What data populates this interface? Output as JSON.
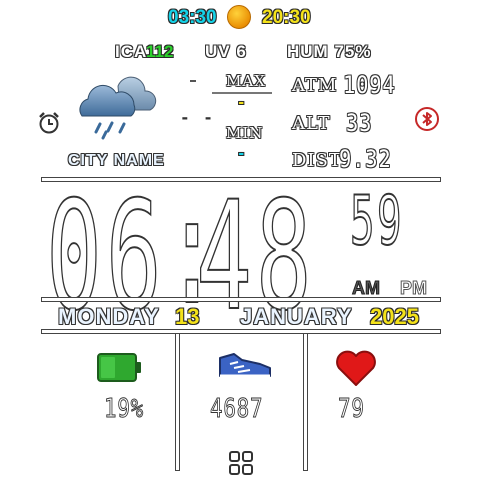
{
  "top": {
    "sunrise": "03:30",
    "sunset": "20:30"
  },
  "row2": {
    "ica_label": "ICA",
    "ica_value": "112",
    "uv": "UV 6",
    "hum": "HUM 75%"
  },
  "weather": {
    "max_label": "MAX",
    "min_label": "MIN",
    "temp_current": "- -",
    "max_value": "-",
    "min_value": "-",
    "city": "CITY NAME"
  },
  "sensors": {
    "atm_label": "ATM",
    "atm_value": "1094",
    "alt_label": "ALT",
    "alt_value": "33",
    "dist_label": "DIST",
    "dist_value": "9.32"
  },
  "clock": {
    "hours": "06",
    "colon": ":",
    "minutes": "48",
    "seconds": "59",
    "am": "AM",
    "pm": "PM"
  },
  "date": {
    "weekday": "MONDAY",
    "day": "13",
    "month": "JANUARY",
    "year": "2025"
  },
  "bottom": {
    "battery": "19%",
    "steps": "4687",
    "heart": "79"
  },
  "colors": {
    "cyan": "#14d3e8",
    "yellow": "#f4e21a",
    "green": "#2bd12b",
    "battery": "#2fa82f",
    "heart": "#e01818",
    "bluetooth": "#c62828"
  }
}
